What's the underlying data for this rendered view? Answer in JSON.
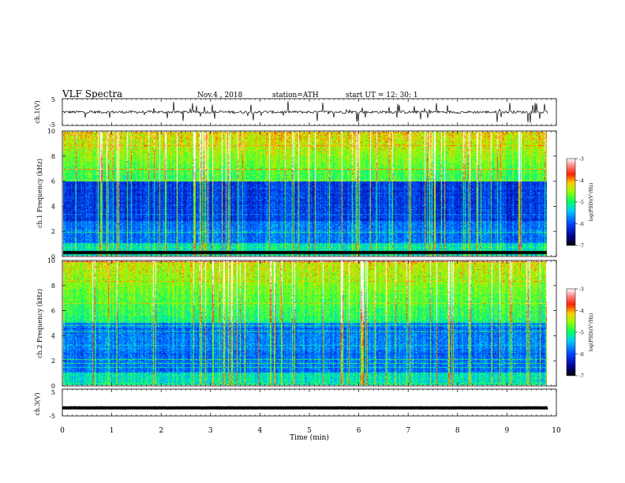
{
  "header": {
    "title": "VLF  Spectra",
    "date": "Nov.4  , 2018",
    "station": "station=ATH",
    "start": "start  UT  =    12: 30: 1"
  },
  "chart_data": [
    {
      "type": "line",
      "name": "ch1-waveform",
      "ylabel": "ch.1(V)",
      "ylim": [
        -5,
        5
      ],
      "yticks": [
        "5",
        "-5"
      ],
      "xlim": [
        0,
        10
      ],
      "baseline": 0,
      "amplitude": 1,
      "color": "#000000"
    },
    {
      "type": "heatmap",
      "name": "ch1-spectrogram",
      "ylabel": "ch.1 Frequency (kHz)",
      "ylim": [
        0,
        10
      ],
      "yticks": [
        "0",
        "2",
        "4",
        "6",
        "8",
        "10"
      ],
      "xlim": [
        0,
        9.83
      ],
      "colorbar": {
        "label": "log(PSD)(V²/Hz)",
        "range": [
          -7,
          -3
        ],
        "ticks": [
          "-3",
          "-4",
          "-5",
          "-6",
          "-7"
        ]
      }
    },
    {
      "type": "heatmap",
      "name": "ch2-spectrogram",
      "ylabel": "ch.2 Frequency (kHz)",
      "ylim": [
        0,
        10
      ],
      "yticks": [
        "0",
        "2",
        "4",
        "6",
        "8",
        "10"
      ],
      "xlim": [
        0,
        9.83
      ],
      "colorbar": {
        "label": "log(PSD)(V²/Hz)",
        "range": [
          -7,
          -3
        ],
        "ticks": [
          "-3",
          "-4",
          "-5",
          "-6",
          "-7"
        ]
      }
    },
    {
      "type": "line",
      "name": "ch3-waveform",
      "ylabel": "ch.3(V)",
      "ylim": [
        -5,
        5
      ],
      "yticks": [
        "5",
        "-5"
      ],
      "xlim": [
        0,
        10
      ],
      "baseline": -2,
      "amplitude": 0.1,
      "color": "#000000"
    }
  ],
  "x_axis": {
    "label": "Time  (min)",
    "range": [
      0,
      10
    ],
    "ticks": [
      "0",
      "1",
      "2",
      "3",
      "4",
      "5",
      "6",
      "7",
      "8",
      "9",
      "10"
    ]
  },
  "colors": {
    "colormap": [
      "#000066",
      "#0000cc",
      "#0044ff",
      "#00ccff",
      "#00ff88",
      "#66ff00",
      "#ccff00",
      "#ffcc00",
      "#ff4400",
      "#cc0000",
      "#ffffff"
    ]
  }
}
